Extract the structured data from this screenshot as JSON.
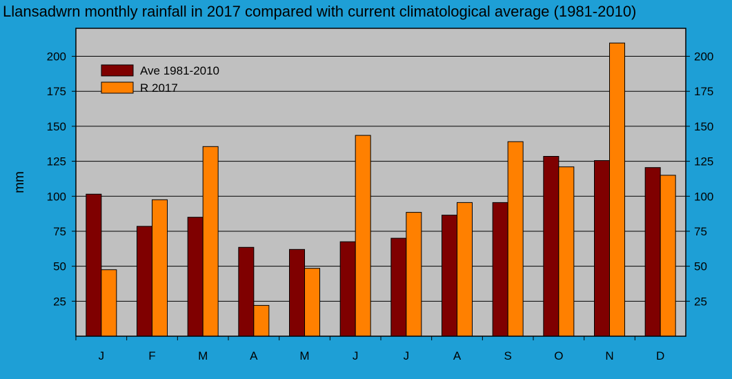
{
  "colors": {
    "background": "#1e9fd6",
    "plot_area": "#c0c0c0",
    "series_ave": "#7f0000",
    "series_2017": "#ff8000"
  },
  "chart_data": {
    "type": "bar",
    "title": "Llansadwrn monthly rainfall in 2017 compared with current climatological average (1981-2010)",
    "xlabel": "",
    "ylabel": "mm",
    "ylim": [
      0,
      220
    ],
    "yticks": [
      25,
      50,
      75,
      100,
      125,
      150,
      175,
      200
    ],
    "y_axis_both_sides": true,
    "grid": "horizontal",
    "legend_position": "top-left",
    "categories": [
      "J",
      "F",
      "M",
      "A",
      "M",
      "J",
      "J",
      "A",
      "S",
      "O",
      "N",
      "D"
    ],
    "series": [
      {
        "name": "Ave 1981-2010",
        "color": "#7f0000",
        "values": [
          101.5,
          78.5,
          85,
          63.5,
          62,
          67.5,
          70,
          86.5,
          95.5,
          128.5,
          125.5,
          120.5
        ]
      },
      {
        "name": "R 2017",
        "color": "#ff8000",
        "values": [
          47.5,
          97.5,
          135.5,
          22,
          48.5,
          143.5,
          88.5,
          95.5,
          139,
          121,
          209.5,
          115
        ]
      }
    ]
  }
}
